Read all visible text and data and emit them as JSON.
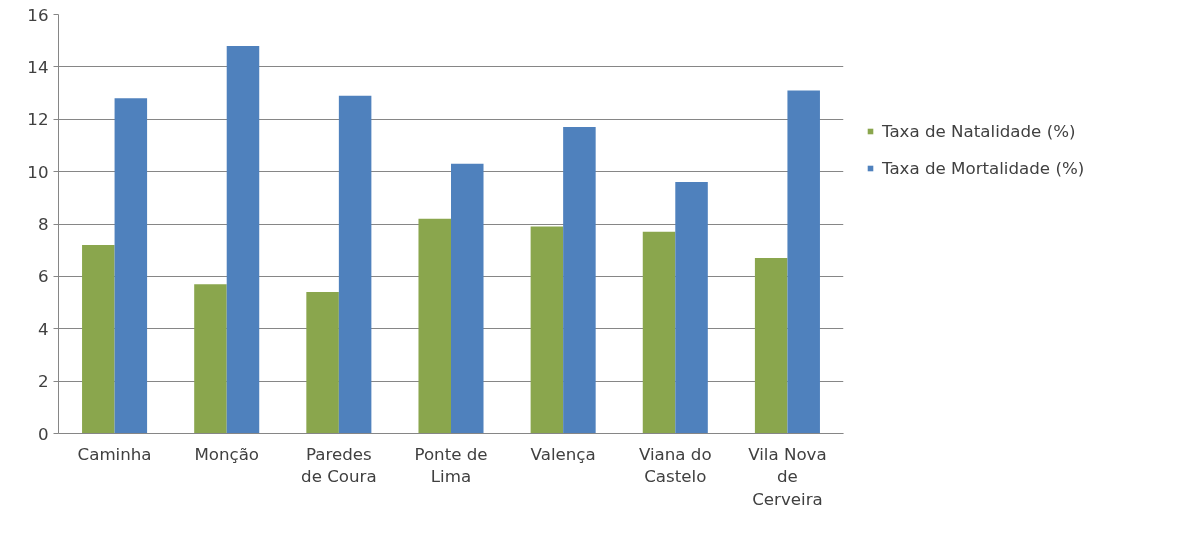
{
  "chart_data": {
    "type": "bar",
    "categories": [
      "Caminha",
      "Monção",
      "Paredes de Coura",
      "Ponte de Lima",
      "Valença",
      "Viana do Castelo",
      "Vila Nova de Cerveira"
    ],
    "series": [
      {
        "name": "Taxa de Natalidade (%)",
        "color": "#8aa64d",
        "values": [
          7.2,
          5.7,
          5.4,
          8.2,
          7.9,
          7.7,
          6.7
        ]
      },
      {
        "name": "Taxa de Mortalidade (%)",
        "color": "#4f81bd",
        "values": [
          12.8,
          14.8,
          12.9,
          10.3,
          11.7,
          9.6,
          13.1
        ]
      }
    ],
    "ylim": [
      0,
      16
    ],
    "yticks": [
      0,
      2,
      4,
      6,
      8,
      10,
      12,
      14,
      16
    ],
    "grid": "y",
    "legend": "right"
  }
}
